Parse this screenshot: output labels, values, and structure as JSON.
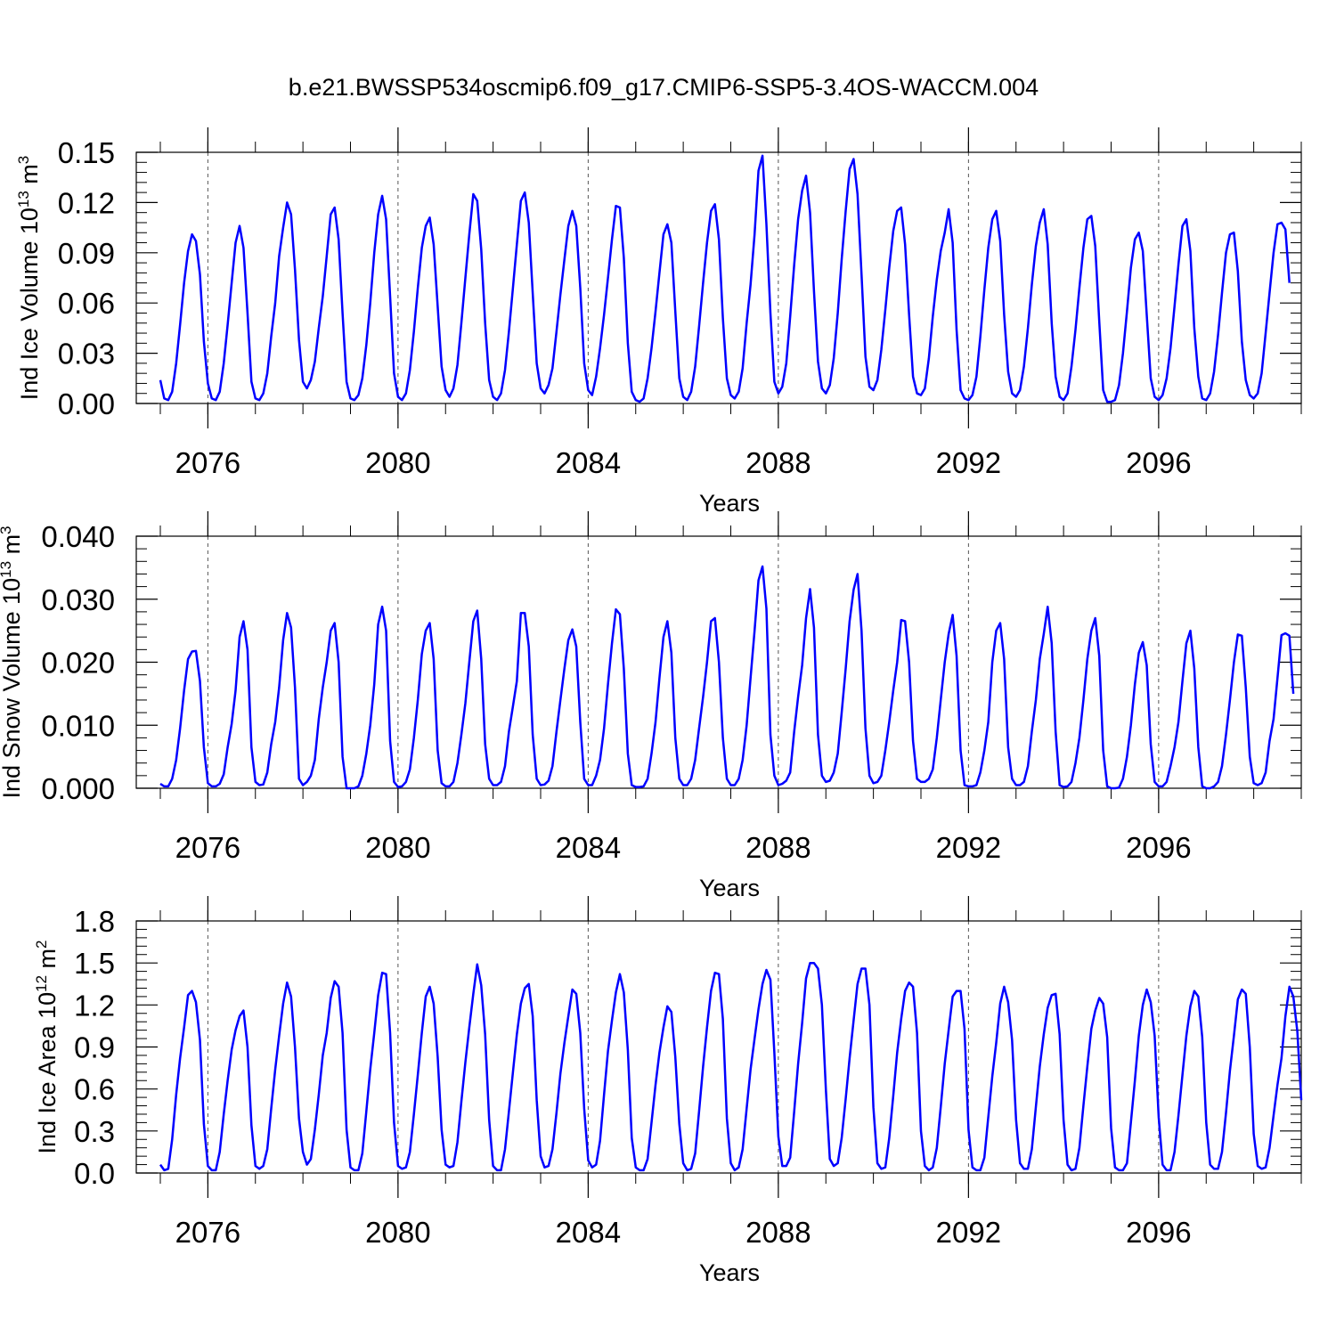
{
  "figure": {
    "title": "b.e21.BWSSP534oscmip6.f09_g17.CMIP6-SSP5-3.4OS-WACCM.004"
  },
  "colors": {
    "line": "#0000ff",
    "axis": "#000000",
    "gridline": "#555555"
  },
  "chart_data": [
    {
      "type": "line",
      "title": "",
      "xlabel": "Years",
      "ylabel": {
        "base": "Ind Ice Volume 10",
        "exp": "13",
        "unit": " m",
        "unit_exp": "3"
      },
      "xlim": [
        2075.0,
        2099.0
      ],
      "ylim": [
        0,
        0.15
      ],
      "yticks": [
        0.0,
        0.03,
        0.06,
        0.09,
        0.12,
        0.15
      ],
      "ytick_labels": [
        "0.00",
        "0.03",
        "0.06",
        "0.09",
        "0.12",
        "0.15"
      ],
      "xticks": [
        2076,
        2080,
        2084,
        2088,
        2092,
        2096
      ],
      "xtick_labels": [
        "2076",
        "2080",
        "2084",
        "2088",
        "2092",
        "2096"
      ],
      "vertical_dashed_lines_at": [
        2076,
        2080,
        2084,
        2088,
        2092,
        2096
      ],
      "grid": false,
      "x_start": 2075.0,
      "x_step_months": 1,
      "series": [
        {
          "values": [
            0.014,
            0.003,
            0.002,
            0.007,
            0.024,
            0.047,
            0.072,
            0.091,
            0.101,
            0.097,
            0.077,
            0.037,
            0.012,
            0.003,
            0.002,
            0.007,
            0.024,
            0.047,
            0.072,
            0.096,
            0.106,
            0.093,
            0.054,
            0.013,
            0.003,
            0.002,
            0.006,
            0.018,
            0.04,
            0.06,
            0.088,
            0.105,
            0.12,
            0.113,
            0.08,
            0.038,
            0.013,
            0.009,
            0.014,
            0.025,
            0.045,
            0.064,
            0.088,
            0.113,
            0.117,
            0.098,
            0.054,
            0.013,
            0.003,
            0.002,
            0.005,
            0.015,
            0.035,
            0.06,
            0.09,
            0.113,
            0.124,
            0.11,
            0.064,
            0.018,
            0.004,
            0.002,
            0.006,
            0.02,
            0.043,
            0.069,
            0.093,
            0.106,
            0.111,
            0.095,
            0.058,
            0.022,
            0.008,
            0.004,
            0.009,
            0.023,
            0.048,
            0.075,
            0.101,
            0.125,
            0.121,
            0.092,
            0.048,
            0.014,
            0.004,
            0.002,
            0.006,
            0.02,
            0.043,
            0.069,
            0.095,
            0.121,
            0.126,
            0.108,
            0.066,
            0.024,
            0.009,
            0.006,
            0.011,
            0.021,
            0.043,
            0.065,
            0.086,
            0.106,
            0.115,
            0.106,
            0.069,
            0.024,
            0.008,
            0.005,
            0.016,
            0.033,
            0.053,
            0.075,
            0.098,
            0.118,
            0.117,
            0.087,
            0.036,
            0.007,
            0.002,
            0.001,
            0.003,
            0.015,
            0.033,
            0.055,
            0.078,
            0.101,
            0.107,
            0.096,
            0.055,
            0.015,
            0.004,
            0.002,
            0.007,
            0.022,
            0.046,
            0.072,
            0.096,
            0.115,
            0.119,
            0.098,
            0.051,
            0.015,
            0.005,
            0.003,
            0.007,
            0.021,
            0.048,
            0.071,
            0.101,
            0.139,
            0.148,
            0.107,
            0.054,
            0.013,
            0.006,
            0.01,
            0.024,
            0.052,
            0.083,
            0.11,
            0.127,
            0.136,
            0.114,
            0.067,
            0.025,
            0.009,
            0.006,
            0.011,
            0.027,
            0.054,
            0.086,
            0.115,
            0.14,
            0.146,
            0.125,
            0.077,
            0.028,
            0.01,
            0.008,
            0.014,
            0.032,
            0.056,
            0.081,
            0.103,
            0.115,
            0.117,
            0.095,
            0.053,
            0.016,
            0.006,
            0.005,
            0.009,
            0.027,
            0.052,
            0.074,
            0.091,
            0.102,
            0.116,
            0.096,
            0.044,
            0.008,
            0.003,
            0.002,
            0.005,
            0.016,
            0.04,
            0.068,
            0.093,
            0.11,
            0.115,
            0.097,
            0.053,
            0.019,
            0.006,
            0.004,
            0.008,
            0.022,
            0.045,
            0.071,
            0.094,
            0.108,
            0.116,
            0.095,
            0.048,
            0.016,
            0.004,
            0.002,
            0.006,
            0.022,
            0.044,
            0.069,
            0.093,
            0.11,
            0.112,
            0.094,
            0.049,
            0.008,
            0.001,
            0.001,
            0.002,
            0.011,
            0.03,
            0.055,
            0.081,
            0.098,
            0.102,
            0.091,
            0.053,
            0.015,
            0.004,
            0.002,
            0.005,
            0.015,
            0.033,
            0.058,
            0.083,
            0.106,
            0.11,
            0.091,
            0.045,
            0.016,
            0.003,
            0.002,
            0.006,
            0.019,
            0.041,
            0.066,
            0.09,
            0.101,
            0.102,
            0.079,
            0.037,
            0.014,
            0.005,
            0.003,
            0.006,
            0.018,
            0.042,
            0.066,
            0.09,
            0.107,
            0.108,
            0.104,
            0.072
          ]
        }
      ]
    },
    {
      "type": "line",
      "title": "",
      "xlabel": "Years",
      "ylabel": {
        "base": "Ind Snow Volume 10",
        "exp": "13",
        "unit": " m",
        "unit_exp": "3"
      },
      "xlim": [
        2075.0,
        2099.0
      ],
      "ylim": [
        0,
        0.04
      ],
      "yticks": [
        0.0,
        0.01,
        0.02,
        0.03,
        0.04
      ],
      "ytick_labels": [
        "0.000",
        "0.010",
        "0.020",
        "0.030",
        "0.040"
      ],
      "xticks": [
        2076,
        2080,
        2084,
        2088,
        2092,
        2096
      ],
      "xtick_labels": [
        "2076",
        "2080",
        "2084",
        "2088",
        "2092",
        "2096"
      ],
      "vertical_dashed_lines_at": [
        2076,
        2080,
        2084,
        2088,
        2092,
        2096
      ],
      "grid": false,
      "x_start": 2075.0,
      "x_step_months": 1,
      "series": [
        {
          "values": [
            0.0007,
            0.0003,
            0.0003,
            0.0015,
            0.0045,
            0.0095,
            0.0155,
            0.0205,
            0.0217,
            0.0218,
            0.017,
            0.0065,
            0.0008,
            0.0003,
            0.0003,
            0.0007,
            0.0022,
            0.0065,
            0.0102,
            0.0155,
            0.024,
            0.0265,
            0.022,
            0.0065,
            0.001,
            0.0005,
            0.0006,
            0.0025,
            0.007,
            0.0105,
            0.016,
            0.0235,
            0.0278,
            0.0255,
            0.016,
            0.0015,
            0.0005,
            0.001,
            0.002,
            0.0045,
            0.011,
            0.016,
            0.02,
            0.025,
            0.0262,
            0.02,
            0.005,
            0.0,
            0.0,
            0.0,
            0.0003,
            0.002,
            0.0055,
            0.01,
            0.0165,
            0.026,
            0.0288,
            0.025,
            0.0075,
            0.001,
            0.0002,
            0.0003,
            0.001,
            0.003,
            0.008,
            0.014,
            0.0213,
            0.025,
            0.0262,
            0.0205,
            0.006,
            0.0008,
            0.0003,
            0.0003,
            0.001,
            0.004,
            0.0085,
            0.0135,
            0.02,
            0.0265,
            0.0282,
            0.0205,
            0.007,
            0.0015,
            0.0005,
            0.0005,
            0.001,
            0.0035,
            0.009,
            0.013,
            0.017,
            0.0278,
            0.0278,
            0.0225,
            0.0085,
            0.0015,
            0.0005,
            0.0006,
            0.0012,
            0.0035,
            0.009,
            0.014,
            0.019,
            0.0235,
            0.0252,
            0.0225,
            0.0105,
            0.0015,
            0.0005,
            0.0005,
            0.002,
            0.0045,
            0.0095,
            0.0165,
            0.023,
            0.0284,
            0.0276,
            0.019,
            0.0055,
            0.0005,
            0.0002,
            0.0002,
            0.0003,
            0.0015,
            0.0055,
            0.0105,
            0.0175,
            0.024,
            0.0265,
            0.0215,
            0.008,
            0.0015,
            0.0005,
            0.0005,
            0.0015,
            0.0045,
            0.0095,
            0.0145,
            0.02,
            0.0265,
            0.027,
            0.02,
            0.008,
            0.0015,
            0.0005,
            0.0005,
            0.0015,
            0.0045,
            0.01,
            0.0175,
            0.025,
            0.033,
            0.0352,
            0.0285,
            0.0085,
            0.002,
            0.0005,
            0.0007,
            0.0012,
            0.0025,
            0.009,
            0.0145,
            0.0195,
            0.027,
            0.0316,
            0.0255,
            0.0085,
            0.002,
            0.001,
            0.0012,
            0.0025,
            0.0055,
            0.012,
            0.019,
            0.0265,
            0.0315,
            0.034,
            0.025,
            0.0095,
            0.002,
            0.0008,
            0.001,
            0.002,
            0.006,
            0.0105,
            0.0155,
            0.02,
            0.0267,
            0.0265,
            0.02,
            0.0075,
            0.0015,
            0.001,
            0.001,
            0.0015,
            0.003,
            0.008,
            0.014,
            0.02,
            0.0245,
            0.0275,
            0.021,
            0.006,
            0.0005,
            0.0003,
            0.0003,
            0.0005,
            0.0025,
            0.006,
            0.0105,
            0.02,
            0.025,
            0.0262,
            0.0205,
            0.0065,
            0.0015,
            0.0005,
            0.0005,
            0.001,
            0.0035,
            0.009,
            0.014,
            0.0205,
            0.0245,
            0.0288,
            0.023,
            0.009,
            0.0005,
            0.0002,
            0.0003,
            0.001,
            0.004,
            0.008,
            0.014,
            0.0205,
            0.025,
            0.027,
            0.021,
            0.006,
            0.0003,
            0.0,
            0.0,
            0.0001,
            0.0015,
            0.005,
            0.01,
            0.0165,
            0.0215,
            0.0232,
            0.0195,
            0.007,
            0.001,
            0.0003,
            0.0003,
            0.001,
            0.0035,
            0.0065,
            0.0105,
            0.017,
            0.023,
            0.025,
            0.019,
            0.0065,
            0.0003,
            0.0,
            0.0,
            0.0003,
            0.001,
            0.0035,
            0.0085,
            0.014,
            0.02,
            0.0244,
            0.0242,
            0.016,
            0.005,
            0.0008,
            0.0005,
            0.0008,
            0.0025,
            0.0075,
            0.011,
            0.0175,
            0.0243,
            0.0246,
            0.0242,
            0.015
          ]
        }
      ]
    },
    {
      "type": "line",
      "title": "",
      "xlabel": "Years",
      "ylabel": {
        "base": "Ind Ice Area 10",
        "exp": "12",
        "unit": " m",
        "unit_exp": "2"
      },
      "xlim": [
        2075.0,
        2099.0
      ],
      "ylim": [
        0,
        1.8
      ],
      "yticks": [
        0.0,
        0.3,
        0.6,
        0.9,
        1.2,
        1.5,
        1.8
      ],
      "ytick_labels": [
        "0.0",
        "0.3",
        "0.6",
        "0.9",
        "1.2",
        "1.5",
        "1.8"
      ],
      "xticks": [
        2076,
        2080,
        2084,
        2088,
        2092,
        2096
      ],
      "xtick_labels": [
        "2076",
        "2080",
        "2084",
        "2088",
        "2092",
        "2096"
      ],
      "vertical_dashed_lines_at": [
        2076,
        2080,
        2084,
        2088,
        2092,
        2096
      ],
      "grid": false,
      "x_start": 2075.0,
      "x_step_months": 1,
      "series": [
        {
          "values": [
            0.06,
            0.02,
            0.03,
            0.24,
            0.56,
            0.82,
            1.04,
            1.27,
            1.3,
            1.22,
            0.95,
            0.35,
            0.05,
            0.02,
            0.02,
            0.15,
            0.42,
            0.66,
            0.88,
            1.02,
            1.12,
            1.16,
            0.9,
            0.34,
            0.05,
            0.03,
            0.05,
            0.17,
            0.46,
            0.74,
            0.98,
            1.21,
            1.36,
            1.26,
            0.9,
            0.39,
            0.15,
            0.06,
            0.1,
            0.31,
            0.56,
            0.84,
            1.0,
            1.25,
            1.37,
            1.33,
            1.0,
            0.31,
            0.04,
            0.02,
            0.02,
            0.14,
            0.44,
            0.74,
            1.0,
            1.27,
            1.43,
            1.42,
            1.0,
            0.36,
            0.05,
            0.03,
            0.04,
            0.15,
            0.42,
            0.7,
            1.0,
            1.26,
            1.33,
            1.21,
            0.83,
            0.31,
            0.06,
            0.04,
            0.05,
            0.22,
            0.51,
            0.79,
            1.04,
            1.28,
            1.49,
            1.34,
            0.99,
            0.38,
            0.05,
            0.02,
            0.02,
            0.17,
            0.44,
            0.72,
            0.99,
            1.21,
            1.32,
            1.35,
            1.12,
            0.52,
            0.12,
            0.04,
            0.05,
            0.17,
            0.43,
            0.71,
            0.93,
            1.12,
            1.31,
            1.28,
            1.0,
            0.46,
            0.09,
            0.04,
            0.06,
            0.23,
            0.56,
            0.87,
            1.09,
            1.29,
            1.42,
            1.29,
            0.88,
            0.25,
            0.04,
            0.02,
            0.02,
            0.1,
            0.36,
            0.63,
            0.86,
            1.04,
            1.19,
            1.15,
            0.83,
            0.35,
            0.07,
            0.02,
            0.03,
            0.14,
            0.44,
            0.76,
            1.04,
            1.3,
            1.43,
            1.42,
            1.1,
            0.39,
            0.07,
            0.02,
            0.04,
            0.17,
            0.46,
            0.74,
            0.96,
            1.17,
            1.35,
            1.45,
            1.38,
            0.86,
            0.26,
            0.05,
            0.05,
            0.11,
            0.44,
            0.78,
            1.07,
            1.39,
            1.5,
            1.5,
            1.46,
            1.2,
            0.59,
            0.1,
            0.05,
            0.07,
            0.25,
            0.53,
            0.82,
            1.09,
            1.35,
            1.46,
            1.46,
            1.2,
            0.47,
            0.07,
            0.03,
            0.04,
            0.25,
            0.55,
            0.86,
            1.1,
            1.3,
            1.36,
            1.33,
            1.0,
            0.3,
            0.05,
            0.02,
            0.04,
            0.18,
            0.47,
            0.78,
            1.02,
            1.26,
            1.3,
            1.3,
            1.03,
            0.31,
            0.04,
            0.02,
            0.02,
            0.11,
            0.4,
            0.69,
            0.93,
            1.21,
            1.33,
            1.22,
            0.95,
            0.38,
            0.07,
            0.03,
            0.03,
            0.17,
            0.47,
            0.76,
            0.99,
            1.18,
            1.27,
            1.28,
            0.99,
            0.38,
            0.06,
            0.02,
            0.03,
            0.18,
            0.48,
            0.76,
            1.03,
            1.16,
            1.25,
            1.21,
            0.97,
            0.32,
            0.04,
            0.02,
            0.02,
            0.07,
            0.36,
            0.66,
            0.98,
            1.2,
            1.31,
            1.22,
            0.98,
            0.4,
            0.06,
            0.02,
            0.02,
            0.15,
            0.41,
            0.7,
            0.98,
            1.19,
            1.3,
            1.26,
            0.97,
            0.36,
            0.06,
            0.03,
            0.03,
            0.15,
            0.43,
            0.73,
            0.98,
            1.24,
            1.31,
            1.28,
            0.9,
            0.28,
            0.05,
            0.03,
            0.04,
            0.18,
            0.41,
            0.63,
            0.82,
            1.12,
            1.33,
            1.26,
            1.01,
            0.52
          ]
        }
      ]
    }
  ]
}
